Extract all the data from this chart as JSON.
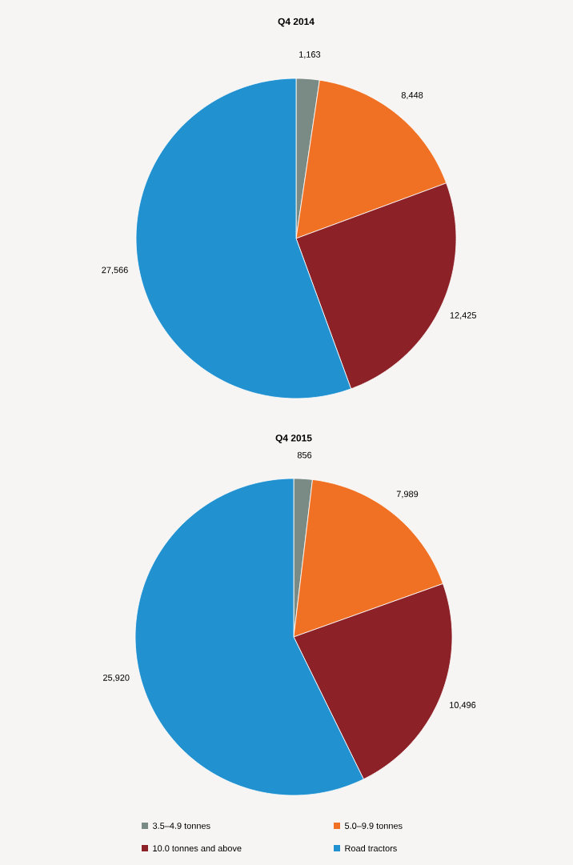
{
  "chart_data": [
    {
      "type": "pie",
      "title": "Q4 2014",
      "categories": [
        null,
        null,
        null,
        null
      ],
      "values": [
        1163,
        8448,
        12425,
        27566
      ],
      "value_labels": [
        "1,163",
        "8,448",
        "12,425",
        "27,566"
      ],
      "colors": [
        "#7a8a84",
        "#f07124",
        "#8c2127",
        "#2291d0"
      ],
      "data_labels": true,
      "legend": false
    },
    {
      "type": "pie",
      "title": "Q4 2015",
      "categories": [
        "3.5–4.9 tonnes",
        "5.0–9.9 tonnes",
        "10.0 tonnes and above",
        "Road tractors"
      ],
      "values": [
        856,
        7989,
        10496,
        25920
      ],
      "value_labels": [
        "856",
        "7,989",
        "10,496",
        "25,920"
      ],
      "colors": [
        "#7a8a84",
        "#f07124",
        "#8c2127",
        "#2291d0"
      ],
      "data_labels": true,
      "legend": "bottom"
    }
  ]
}
